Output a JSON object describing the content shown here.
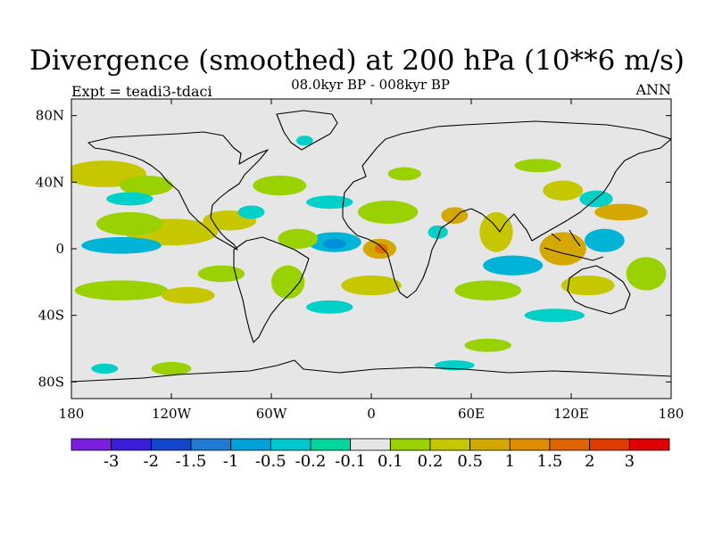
{
  "title": "Divergence (smoothed) at 200 hPa (10**6 m/s)",
  "subtitle": "08.0kyr BP - 008kyr BP",
  "left_label": "Expt = teadi3-tdaci",
  "right_label": "ANN",
  "map": {
    "type": "global-filled-contour",
    "projection": "cylindrical-equidistant",
    "background_color": "#e6e6e6",
    "x_ticks": [
      {
        "lon": -180,
        "label": "180"
      },
      {
        "lon": -120,
        "label": "120W"
      },
      {
        "lon": -60,
        "label": "60W"
      },
      {
        "lon": 0,
        "label": "0"
      },
      {
        "lon": 60,
        "label": "60E"
      },
      {
        "lon": 120,
        "label": "120E"
      },
      {
        "lon": 180,
        "label": "180"
      }
    ],
    "y_ticks": [
      {
        "lat": 80,
        "label": "80N"
      },
      {
        "lat": 40,
        "label": "40N"
      },
      {
        "lat": 0,
        "label": "0"
      },
      {
        "lat": -40,
        "label": "40S"
      },
      {
        "lat": -80,
        "label": "80S"
      }
    ],
    "regions": [
      {
        "name": "east-tropical-atlantic-max",
        "lon": 5,
        "lat": 0,
        "rx": 10,
        "ry": 6,
        "color": "#d4a800"
      },
      {
        "name": "east-tropical-atlantic-core",
        "lon": 6,
        "lat": 0,
        "rx": 4,
        "ry": 3,
        "color": "#e07000"
      },
      {
        "name": "central-tropical-atlantic-min",
        "lon": -22,
        "lat": 4,
        "rx": 16,
        "ry": 6,
        "color": "#00b4d8"
      },
      {
        "name": "central-tropical-atlantic-core",
        "lon": -22,
        "lat": 3,
        "rx": 7,
        "ry": 3,
        "color": "#0090d8"
      },
      {
        "name": "west-atlantic-green",
        "lon": -44,
        "lat": 6,
        "rx": 12,
        "ry": 6,
        "color": "#99d200"
      },
      {
        "name": "caribbean-pos",
        "lon": -85,
        "lat": 17,
        "rx": 16,
        "ry": 6,
        "color": "#c7c700"
      },
      {
        "name": "caribbean-neg",
        "lon": -72,
        "lat": 22,
        "rx": 8,
        "ry": 4,
        "color": "#00d0c8"
      },
      {
        "name": "east-pacific-pos",
        "lon": -120,
        "lat": 10,
        "rx": 28,
        "ry": 8,
        "color": "#c7c700"
      },
      {
        "name": "east-pacific-green",
        "lon": -145,
        "lat": 15,
        "rx": 20,
        "ry": 7,
        "color": "#99d200"
      },
      {
        "name": "central-pacific-neg",
        "lon": -150,
        "lat": 2,
        "rx": 24,
        "ry": 5,
        "color": "#00b4d8"
      },
      {
        "name": "north-pacific-pos",
        "lon": -160,
        "lat": 45,
        "rx": 25,
        "ry": 8,
        "color": "#c7c700"
      },
      {
        "name": "north-pacific-green",
        "lon": -135,
        "lat": 38,
        "rx": 16,
        "ry": 6,
        "color": "#99d200"
      },
      {
        "name": "north-pacific-neg",
        "lon": -145,
        "lat": 30,
        "rx": 14,
        "ry": 4,
        "color": "#00d0c8"
      },
      {
        "name": "south-pacific-green",
        "lon": -150,
        "lat": -25,
        "rx": 28,
        "ry": 6,
        "color": "#99d200"
      },
      {
        "name": "south-pacific-pos",
        "lon": -110,
        "lat": -28,
        "rx": 16,
        "ry": 5,
        "color": "#c7c700"
      },
      {
        "name": "se-pacific-green",
        "lon": -90,
        "lat": -15,
        "rx": 14,
        "ry": 5,
        "color": "#99d200"
      },
      {
        "name": "s-america-green",
        "lon": -50,
        "lat": -20,
        "rx": 10,
        "ry": 10,
        "color": "#99d200"
      },
      {
        "name": "south-atlantic-pos",
        "lon": 0,
        "lat": -22,
        "rx": 18,
        "ry": 6,
        "color": "#c7c700"
      },
      {
        "name": "south-atlantic-neg",
        "lon": -25,
        "lat": -35,
        "rx": 14,
        "ry": 4,
        "color": "#00d0c8"
      },
      {
        "name": "north-atlantic-green",
        "lon": -55,
        "lat": 38,
        "rx": 16,
        "ry": 6,
        "color": "#99d200"
      },
      {
        "name": "north-atlantic-neg",
        "lon": -25,
        "lat": 28,
        "rx": 14,
        "ry": 4,
        "color": "#00d0c8"
      },
      {
        "name": "n-africa-green",
        "lon": 10,
        "lat": 22,
        "rx": 18,
        "ry": 7,
        "color": "#99d200"
      },
      {
        "name": "arabia-pos",
        "lon": 50,
        "lat": 20,
        "rx": 8,
        "ry": 5,
        "color": "#d4a800"
      },
      {
        "name": "e-africa-neg",
        "lon": 40,
        "lat": 10,
        "rx": 6,
        "ry": 4,
        "color": "#00d0c8"
      },
      {
        "name": "indian-ocean-pos",
        "lon": 75,
        "lat": 10,
        "rx": 10,
        "ry": 12,
        "color": "#c7c700"
      },
      {
        "name": "indian-ocean-neg",
        "lon": 85,
        "lat": -10,
        "rx": 18,
        "ry": 6,
        "color": "#00b4d8"
      },
      {
        "name": "south-indian-green",
        "lon": 70,
        "lat": -25,
        "rx": 20,
        "ry": 6,
        "color": "#99d200"
      },
      {
        "name": "south-indian-neg",
        "lon": 110,
        "lat": -40,
        "rx": 18,
        "ry": 4,
        "color": "#00d0c8"
      },
      {
        "name": "maritime-continent-pos",
        "lon": 115,
        "lat": 0,
        "rx": 14,
        "ry": 10,
        "color": "#d4a800"
      },
      {
        "name": "w-pacific-neg",
        "lon": 140,
        "lat": 5,
        "rx": 12,
        "ry": 7,
        "color": "#00b4d8"
      },
      {
        "name": "east-asia-pos",
        "lon": 115,
        "lat": 35,
        "rx": 12,
        "ry": 6,
        "color": "#c7c700"
      },
      {
        "name": "nw-pacific-neg",
        "lon": 135,
        "lat": 30,
        "rx": 10,
        "ry": 5,
        "color": "#00d0c8"
      },
      {
        "name": "nw-pacific-pos",
        "lon": 150,
        "lat": 22,
        "rx": 16,
        "ry": 5,
        "color": "#d4a800"
      },
      {
        "name": "australia-pos",
        "lon": 130,
        "lat": -22,
        "rx": 16,
        "ry": 6,
        "color": "#c7c700"
      },
      {
        "name": "sw-pacific-green",
        "lon": 165,
        "lat": -15,
        "rx": 12,
        "ry": 10,
        "color": "#99d200"
      },
      {
        "name": "s-ocean-green",
        "lon": 70,
        "lat": -58,
        "rx": 14,
        "ry": 4,
        "color": "#99d200"
      },
      {
        "name": "s-ocean-neg",
        "lon": 50,
        "lat": -70,
        "rx": 12,
        "ry": 3,
        "color": "#00d0c8"
      },
      {
        "name": "antarctic-green",
        "lon": -120,
        "lat": -72,
        "rx": 12,
        "ry": 4,
        "color": "#99d200"
      },
      {
        "name": "antarctic-neg",
        "lon": -160,
        "lat": -72,
        "rx": 8,
        "ry": 3,
        "color": "#00d0c8"
      },
      {
        "name": "north-atlantic-high-neg",
        "lon": -40,
        "lat": 65,
        "rx": 5,
        "ry": 3,
        "color": "#00d0c8"
      },
      {
        "name": "europe-green",
        "lon": 20,
        "lat": 45,
        "rx": 10,
        "ry": 4,
        "color": "#99d200"
      },
      {
        "name": "siberia-green",
        "lon": 100,
        "lat": 50,
        "rx": 14,
        "ry": 4,
        "color": "#99d200"
      }
    ]
  },
  "colorbar": {
    "colors": [
      "#7a1fe0",
      "#3c1cd8",
      "#1446cc",
      "#1f7ad4",
      "#00a0d8",
      "#00c8d0",
      "#00d79c",
      "#e6e6e6",
      "#99d200",
      "#c7c700",
      "#d4a800",
      "#e08c00",
      "#e06400",
      "#e03c00",
      "#e00000"
    ],
    "labels": [
      "-3",
      "-2",
      "-1.5",
      "-1",
      "-0.5",
      "-0.2",
      "-0.1",
      "0.1",
      "0.2",
      "0.5",
      "1",
      "1.5",
      "2",
      "3"
    ]
  }
}
